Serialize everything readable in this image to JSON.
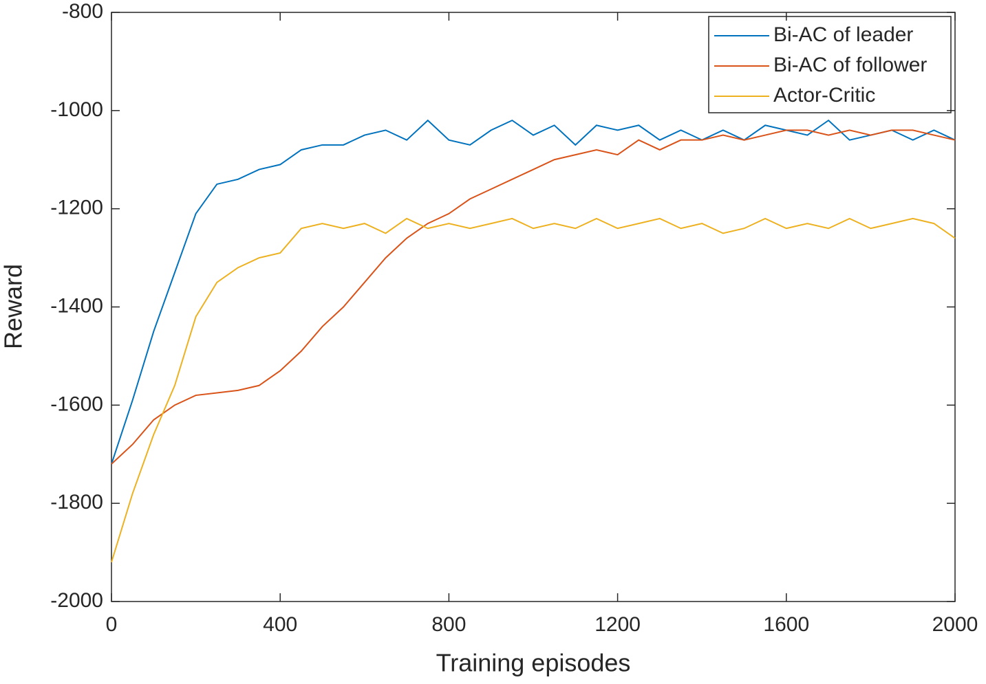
{
  "chart_data": {
    "type": "line",
    "xlabel": "Training episodes",
    "ylabel": "Reward",
    "x": [
      0,
      50,
      100,
      150,
      200,
      250,
      300,
      350,
      400,
      450,
      500,
      550,
      600,
      650,
      700,
      750,
      800,
      850,
      900,
      950,
      1000,
      1050,
      1100,
      1150,
      1200,
      1250,
      1300,
      1350,
      1400,
      1450,
      1500,
      1550,
      1600,
      1650,
      1700,
      1750,
      1800,
      1850,
      1900,
      1950,
      2000
    ],
    "series": [
      {
        "name": "Bi-AC of leader",
        "color": "#0072bd",
        "values": [
          -1720,
          -1590,
          -1450,
          -1330,
          -1210,
          -1150,
          -1140,
          -1120,
          -1110,
          -1080,
          -1070,
          -1070,
          -1050,
          -1040,
          -1060,
          -1020,
          -1060,
          -1070,
          -1040,
          -1020,
          -1050,
          -1030,
          -1070,
          -1030,
          -1040,
          -1030,
          -1060,
          -1040,
          -1060,
          -1040,
          -1060,
          -1030,
          -1040,
          -1050,
          -1020,
          -1060,
          -1050,
          -1040,
          -1060,
          -1040,
          -1060
        ]
      },
      {
        "name": "Bi-AC of follower",
        "color": "#d95319",
        "values": [
          -1720,
          -1680,
          -1630,
          -1600,
          -1580,
          -1575,
          -1570,
          -1560,
          -1530,
          -1490,
          -1440,
          -1400,
          -1350,
          -1300,
          -1260,
          -1230,
          -1210,
          -1180,
          -1160,
          -1140,
          -1120,
          -1100,
          -1090,
          -1080,
          -1090,
          -1060,
          -1080,
          -1060,
          -1060,
          -1050,
          -1060,
          -1050,
          -1040,
          -1040,
          -1050,
          -1040,
          -1050,
          -1040,
          -1040,
          -1050,
          -1060
        ]
      },
      {
        "name": "Actor-Critic",
        "color": "#edb120",
        "values": [
          -1920,
          -1780,
          -1660,
          -1560,
          -1420,
          -1350,
          -1320,
          -1300,
          -1290,
          -1240,
          -1230,
          -1240,
          -1230,
          -1250,
          -1220,
          -1240,
          -1230,
          -1240,
          -1230,
          -1220,
          -1240,
          -1230,
          -1240,
          -1220,
          -1240,
          -1230,
          -1220,
          -1240,
          -1230,
          -1250,
          -1240,
          -1220,
          -1240,
          -1230,
          -1240,
          -1220,
          -1240,
          -1230,
          -1220,
          -1230,
          -1260
        ]
      }
    ],
    "xlim": [
      0,
      2000
    ],
    "xticks": [
      0,
      400,
      800,
      1200,
      1600,
      2000
    ],
    "ylim": [
      -2000,
      -800
    ],
    "yticks": [
      -2000,
      -1800,
      -1600,
      -1400,
      -1200,
      -1000,
      -800
    ],
    "grid": false,
    "legend": "northeast"
  }
}
